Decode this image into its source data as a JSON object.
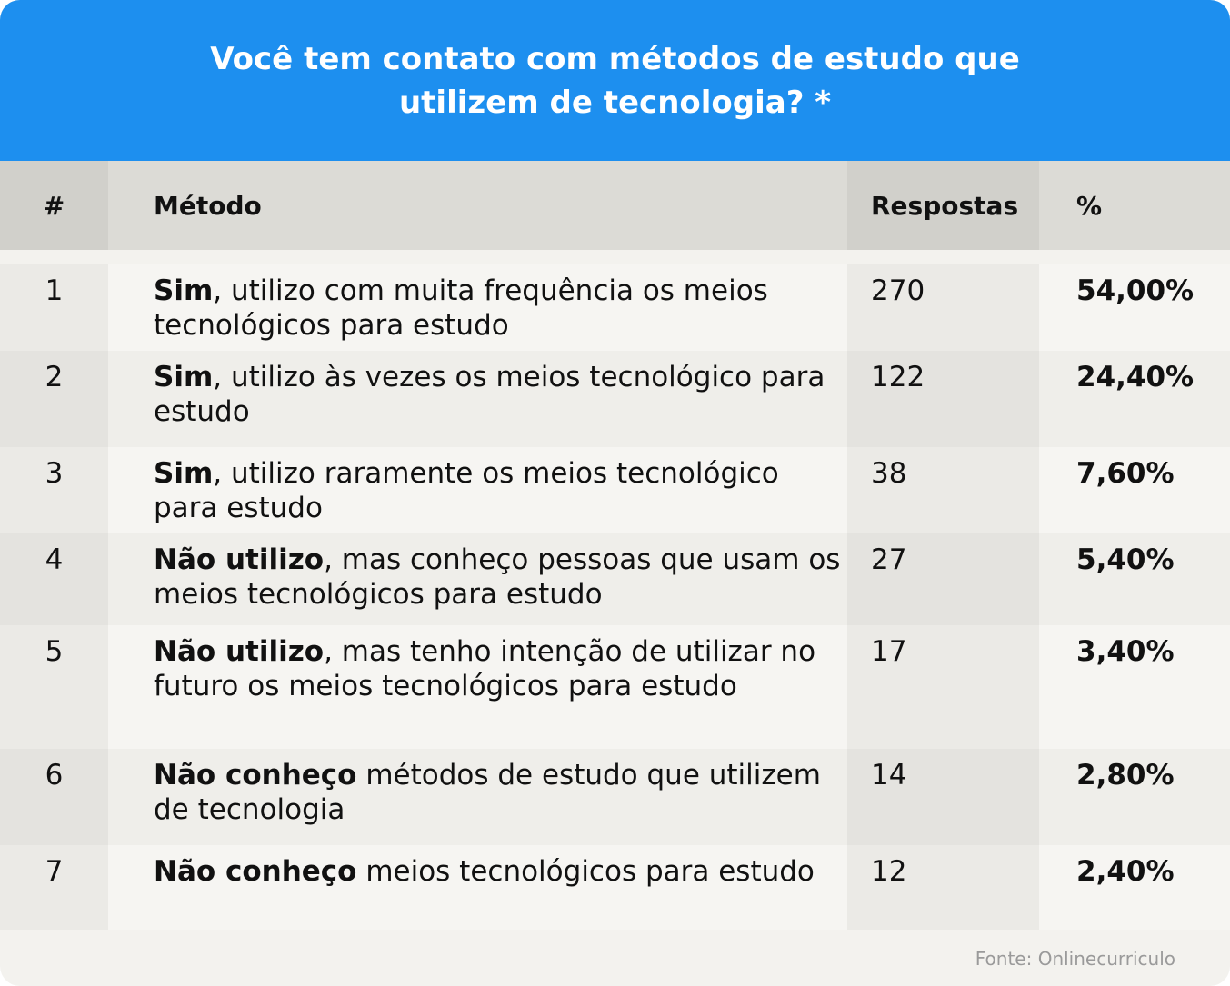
{
  "title": "Você tem contato com métodos de estudo que utilizem de tecnologia? *",
  "headers": {
    "num": "#",
    "method": "Método",
    "responses": "Respostas",
    "pct": "%"
  },
  "rows": [
    {
      "num": "1",
      "bold": "Sim",
      "rest": ", utilizo com muita frequência os meios tecnológicos para estudo",
      "responses": "270",
      "pct": "54,00%"
    },
    {
      "num": "2",
      "bold": "Sim",
      "rest": ", utilizo às vezes os meios tecnológico para estudo",
      "responses": "122",
      "pct": "24,40%"
    },
    {
      "num": "3",
      "bold": "Sim",
      "rest": ", utilizo raramente os meios tecnológico para estudo",
      "responses": "38",
      "pct": "7,60%"
    },
    {
      "num": "4",
      "bold": "Não utilizo",
      "rest": ", mas conheço pessoas que usam os meios tecnológicos para estudo",
      "responses": "27",
      "pct": "5,40%"
    },
    {
      "num": "5",
      "bold": "Não utilizo",
      "rest": ", mas tenho intenção de utilizar no futuro os meios tecnológicos para estudo",
      "responses": "17",
      "pct": "3,40%"
    },
    {
      "num": "6",
      "bold": "Não conheço",
      "rest": " métodos de estudo que utilizem de tecnologia",
      "responses": "14",
      "pct": "2,80%"
    },
    {
      "num": "7",
      "bold": "Não conheço",
      "rest": " meios tecnológicos para estudo",
      "responses": "12",
      "pct": "2,40%"
    }
  ],
  "source": "Fonte: Onlinecurriculo",
  "chart_data": {
    "type": "table",
    "title": "Você tem contato com métodos de estudo que utilizem de tecnologia? *",
    "columns": [
      "#",
      "Método",
      "Respostas",
      "%"
    ],
    "rows": [
      [
        "1",
        "Sim, utilizo com muita frequência os meios tecnológicos para estudo",
        270,
        "54,00%"
      ],
      [
        "2",
        "Sim, utilizo às vezes os meios tecnológico para estudo",
        122,
        "24,40%"
      ],
      [
        "3",
        "Sim, utilizo raramente os meios tecnológico para estudo",
        38,
        "7,60%"
      ],
      [
        "4",
        "Não utilizo, mas conheço pessoas que usam os meios tecnológicos para estudo",
        27,
        "5,40%"
      ],
      [
        "5",
        "Não utilizo, mas tenho intenção de utilizar no futuro os meios tecnológicos para estudo",
        17,
        "3,40%"
      ],
      [
        "6",
        "Não conheço métodos de estudo que utilizem de tecnologia",
        14,
        "2,80%"
      ],
      [
        "7",
        "Não conheço meios tecnológicos para estudo",
        12,
        "2,40%"
      ]
    ]
  },
  "colors": {
    "header_blue": "#1d8fef",
    "table_header": "#dcdbd6",
    "background": "#f3f2ee"
  }
}
